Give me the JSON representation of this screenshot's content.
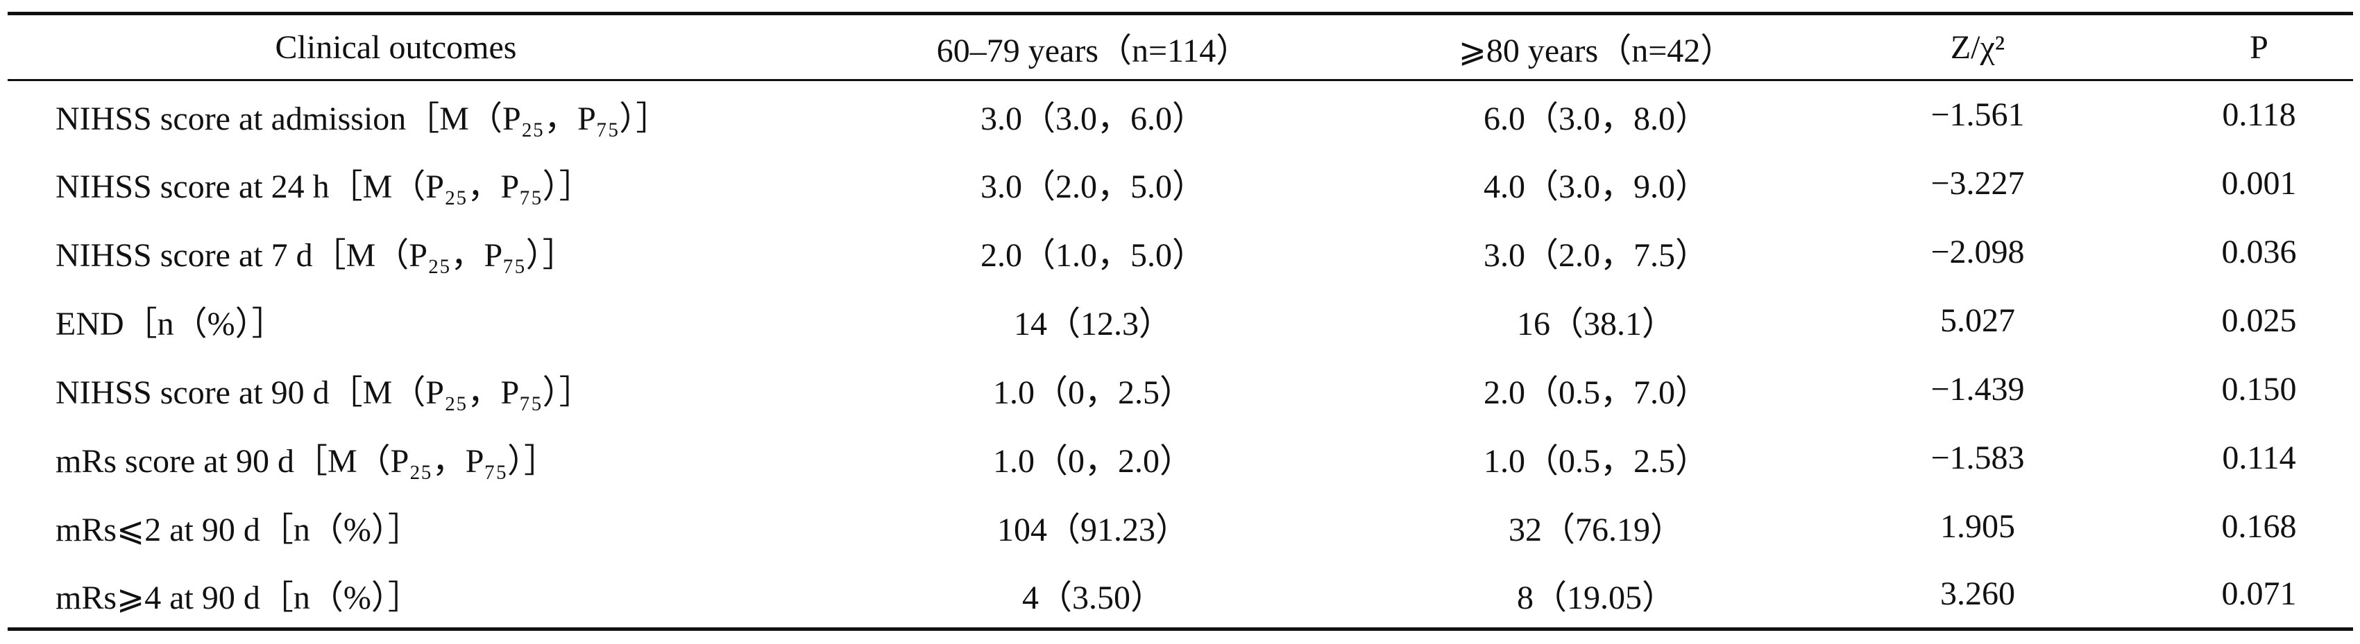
{
  "table": {
    "header": [
      "Clinical outcomes",
      "60–79 years（n=114）",
      "⩾80 years（n=42）",
      "Z/χ²",
      "P"
    ],
    "rows": [
      [
        "NIHSS score at admission［M（P₂₅，P₇₅）］",
        "3.0（3.0，6.0）",
        "6.0（3.0，8.0）",
        "−1.561",
        "0.118"
      ],
      [
        "NIHSS score at 24 h［M（P₂₅，P₇₅）］",
        "3.0（2.0，5.0）",
        "4.0（3.0，9.0）",
        "−3.227",
        "0.001"
      ],
      [
        "NIHSS score at 7 d［M（P₂₅，P₇₅）］",
        "2.0（1.0，5.0）",
        "3.0（2.0，7.5）",
        "−2.098",
        "0.036"
      ],
      [
        "END［n（%）］",
        "14（12.3）",
        "16（38.1）",
        "5.027",
        "0.025"
      ],
      [
        "NIHSS score at 90 d［M（P₂₅，P₇₅）］",
        "1.0（0，2.5）",
        "2.0（0.5，7.0）",
        "−1.439",
        "0.150"
      ],
      [
        "mRs score at 90 d［M（P₂₅，P₇₅）］",
        "1.0（0，2.0）",
        "1.0（0.5，2.5）",
        "−1.583",
        "0.114"
      ],
      [
        "mRs⩽2 at 90 d［n（%）］",
        "104（91.23）",
        "32（76.19）",
        "1.905",
        "0.168"
      ],
      [
        "mRs⩾4 at 90 d［n（%）］",
        "4（3.50）",
        "8（19.05）",
        "3.260",
        "0.071"
      ]
    ]
  }
}
